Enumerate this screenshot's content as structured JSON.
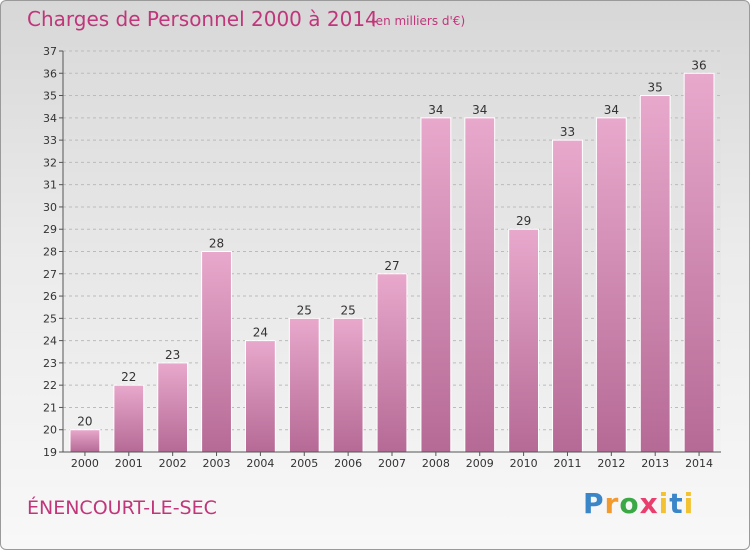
{
  "header": {
    "title": "Charges de Personnel 2000 à 2014",
    "subtitle": "(en milliers d'€)"
  },
  "footer": {
    "commune": "ÉNENCOURT-LE-SEC",
    "logo": {
      "p": "P",
      "r": "r",
      "o": "o",
      "x": "x",
      "i": "i",
      "t": "t",
      "i2": "i"
    }
  },
  "chart_data": {
    "type": "bar",
    "title": "Charges de Personnel 2000 à 2014",
    "subtitle": "(en milliers d'€)",
    "xlabel": "",
    "ylabel": "",
    "categories": [
      "2000",
      "2001",
      "2002",
      "2003",
      "2004",
      "2005",
      "2006",
      "2007",
      "2008",
      "2009",
      "2010",
      "2011",
      "2012",
      "2013",
      "2014"
    ],
    "values": [
      20,
      22,
      23,
      28,
      24,
      25,
      25,
      27,
      34,
      34,
      29,
      33,
      34,
      35,
      36
    ],
    "ylim": [
      19,
      37
    ],
    "yticks": [
      19,
      20,
      21,
      22,
      23,
      24,
      25,
      26,
      27,
      28,
      29,
      30,
      31,
      32,
      33,
      34,
      35,
      36,
      37
    ],
    "grid": "horizontal-dashed",
    "legend": "none",
    "colors": {
      "bar_top": "#e8a8cc",
      "bar_bottom": "#b56a95",
      "text": "#c0367a",
      "grid": "#bbbbbb"
    }
  }
}
